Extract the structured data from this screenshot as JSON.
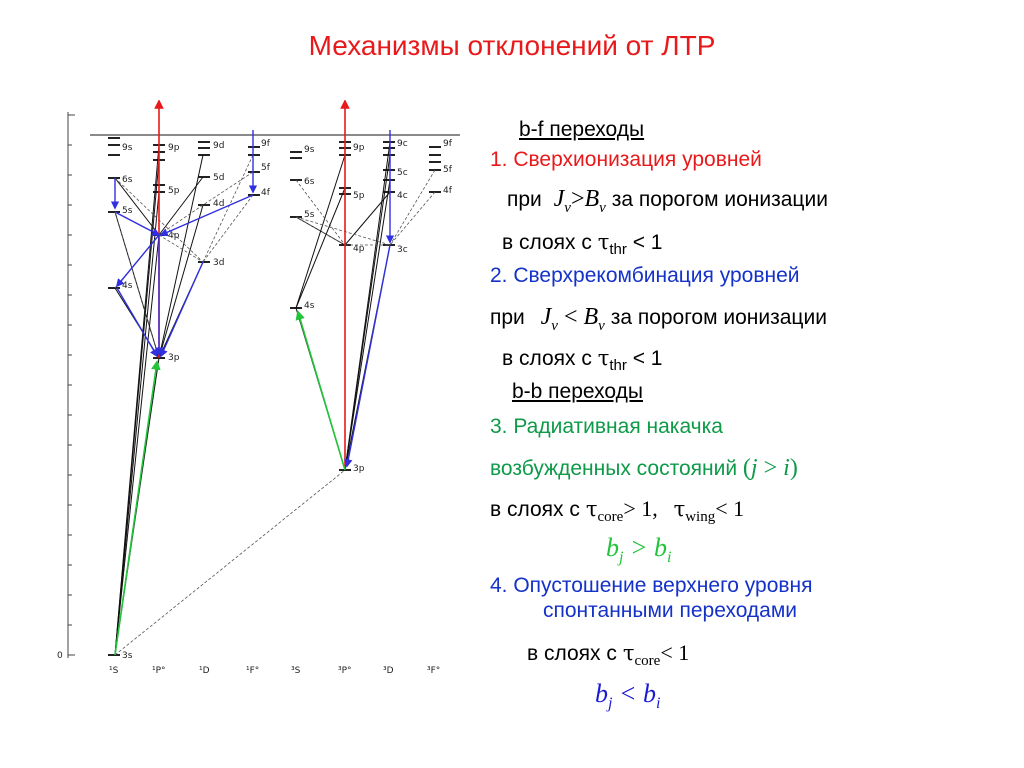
{
  "title": "Механизмы отклонений от ЛТР",
  "diagram": {
    "terms": [
      "¹S",
      "¹P°",
      "¹D",
      "¹F°",
      "³S",
      "³P°",
      "³D",
      "³F°"
    ],
    "zero_label": "0",
    "singlet_levels": [
      "9s",
      "6s",
      "5s",
      "4s",
      "3s",
      "9p",
      "5p",
      "4p",
      "3p",
      "9d",
      "5d",
      "4d",
      "3d",
      "9f",
      "5f",
      "4f"
    ],
    "triplet_levels": [
      "9s",
      "6s",
      "5s",
      "4s",
      "9p",
      "5p",
      "4p",
      "3p",
      "9c",
      "5c",
      "4c",
      "3c",
      "9f",
      "5f",
      "4f"
    ]
  },
  "text": {
    "bf_heading": "b-f переходы",
    "item1": "1. Сверхионизация уровней",
    "item1_cond_pre": "при",
    "item1_cond_post": "за порогом ионизации",
    "layers_prefix": "в слоях с",
    "tau_thr_sub": "thr",
    "tau_thr_tail": "< 1",
    "item2": "2. Сверхрекомбинация уровней",
    "item2_cond_pre": "при",
    "item2_cond_post": "за порогом ионизации",
    "bb_heading": "b-b переходы",
    "item3_line1": "3.  Радиативная накачка",
    "item3_line2": "возбужденных состояний",
    "item3_cond_core_sub": "core",
    "item3_cond_core_tail": "> 1,",
    "item3_cond_wing_sub": "wing",
    "item3_cond_wing_tail": "< 1",
    "item4_line1": "4.   Опустошение верхнего уровня",
    "item4_line2": "спонтанными переходами",
    "item4_cond_core_sub": "core",
    "item4_cond_core_tail": "< 1"
  },
  "colors": {
    "title": "#e8191b",
    "item1": "#e8191b",
    "item2": "#1432c8",
    "item3": "#0e9a48",
    "bj_gt_bi": "#22c43a",
    "bj_lt_bi": "#1a1ad2",
    "ionization_arrow": "#e8191b",
    "recombination_arrow": "#3030e0",
    "pumping_arrow": "#22c43a"
  }
}
